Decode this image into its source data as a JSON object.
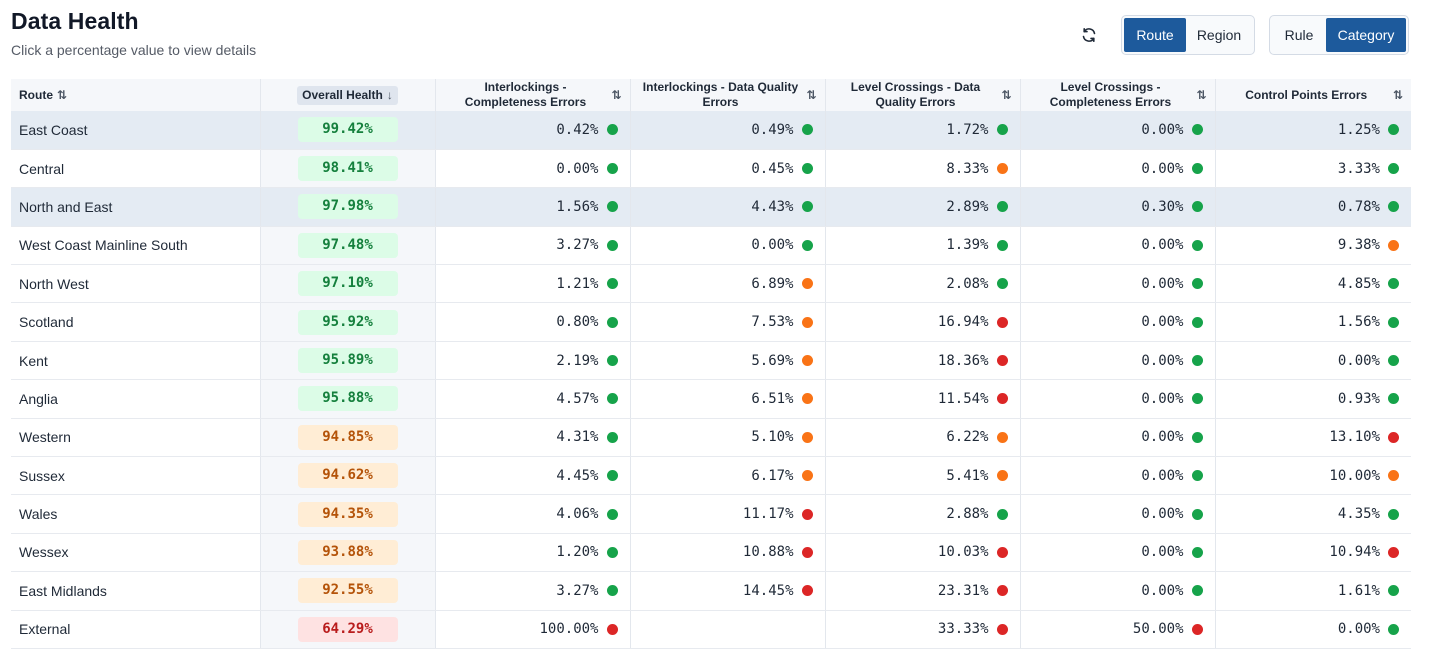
{
  "header": {
    "title": "Data Health",
    "subtitle": "Click a percentage value to view details"
  },
  "toolbar": {
    "refresh_icon": "refresh-icon",
    "group_by": [
      {
        "label": "Route",
        "active": true
      },
      {
        "label": "Region",
        "active": false
      }
    ],
    "view_by": [
      {
        "label": "Rule",
        "active": false
      },
      {
        "label": "Category",
        "active": true
      }
    ]
  },
  "colors": {
    "accent": "#1d5a9c",
    "green": "#16a34a",
    "orange": "#f97316",
    "red": "#dc2626"
  },
  "table": {
    "columns": [
      {
        "label": "Route",
        "sort_icon": "sort-both-icon"
      },
      {
        "label": "Overall Health",
        "sort_icon": "sort-down-icon"
      },
      {
        "label": "Interlockings - Completeness Errors",
        "sort_icon": "sort-both-icon"
      },
      {
        "label": "Interlockings - Data Quality Errors",
        "sort_icon": "sort-both-icon"
      },
      {
        "label": "Level Crossings - Data Quality Errors",
        "sort_icon": "sort-both-icon"
      },
      {
        "label": "Level Crossings - Completeness Errors",
        "sort_icon": "sort-both-icon"
      },
      {
        "label": "Control Points Errors",
        "sort_icon": "sort-both-icon"
      }
    ],
    "rows": [
      {
        "route": "East Coast",
        "health": "99.42%",
        "status": "good",
        "highlighted": true,
        "cells": [
          {
            "v": "0.42%",
            "s": "g"
          },
          {
            "v": "0.49%",
            "s": "g"
          },
          {
            "v": "1.72%",
            "s": "g"
          },
          {
            "v": "0.00%",
            "s": "g"
          },
          {
            "v": "1.25%",
            "s": "g"
          }
        ]
      },
      {
        "route": "Central",
        "health": "98.41%",
        "status": "good",
        "highlighted": false,
        "cells": [
          {
            "v": "0.00%",
            "s": "g"
          },
          {
            "v": "0.45%",
            "s": "g"
          },
          {
            "v": "8.33%",
            "s": "o"
          },
          {
            "v": "0.00%",
            "s": "g"
          },
          {
            "v": "3.33%",
            "s": "g"
          }
        ]
      },
      {
        "route": "North and East",
        "health": "97.98%",
        "status": "good",
        "highlighted": true,
        "cells": [
          {
            "v": "1.56%",
            "s": "g"
          },
          {
            "v": "4.43%",
            "s": "g"
          },
          {
            "v": "2.89%",
            "s": "g"
          },
          {
            "v": "0.30%",
            "s": "g"
          },
          {
            "v": "0.78%",
            "s": "g"
          }
        ]
      },
      {
        "route": "West Coast Mainline South",
        "health": "97.48%",
        "status": "good",
        "highlighted": false,
        "cells": [
          {
            "v": "3.27%",
            "s": "g"
          },
          {
            "v": "0.00%",
            "s": "g"
          },
          {
            "v": "1.39%",
            "s": "g"
          },
          {
            "v": "0.00%",
            "s": "g"
          },
          {
            "v": "9.38%",
            "s": "o"
          }
        ]
      },
      {
        "route": "North West",
        "health": "97.10%",
        "status": "good",
        "highlighted": false,
        "cells": [
          {
            "v": "1.21%",
            "s": "g"
          },
          {
            "v": "6.89%",
            "s": "o"
          },
          {
            "v": "2.08%",
            "s": "g"
          },
          {
            "v": "0.00%",
            "s": "g"
          },
          {
            "v": "4.85%",
            "s": "g"
          }
        ]
      },
      {
        "route": "Scotland",
        "health": "95.92%",
        "status": "good",
        "highlighted": false,
        "cells": [
          {
            "v": "0.80%",
            "s": "g"
          },
          {
            "v": "7.53%",
            "s": "o"
          },
          {
            "v": "16.94%",
            "s": "r"
          },
          {
            "v": "0.00%",
            "s": "g"
          },
          {
            "v": "1.56%",
            "s": "g"
          }
        ]
      },
      {
        "route": "Kent",
        "health": "95.89%",
        "status": "good",
        "highlighted": false,
        "cells": [
          {
            "v": "2.19%",
            "s": "g"
          },
          {
            "v": "5.69%",
            "s": "o"
          },
          {
            "v": "18.36%",
            "s": "r"
          },
          {
            "v": "0.00%",
            "s": "g"
          },
          {
            "v": "0.00%",
            "s": "g"
          }
        ]
      },
      {
        "route": "Anglia",
        "health": "95.88%",
        "status": "good",
        "highlighted": false,
        "cells": [
          {
            "v": "4.57%",
            "s": "g"
          },
          {
            "v": "6.51%",
            "s": "o"
          },
          {
            "v": "11.54%",
            "s": "r"
          },
          {
            "v": "0.00%",
            "s": "g"
          },
          {
            "v": "0.93%",
            "s": "g"
          }
        ]
      },
      {
        "route": "Western",
        "health": "94.85%",
        "status": "warn",
        "highlighted": false,
        "cells": [
          {
            "v": "4.31%",
            "s": "g"
          },
          {
            "v": "5.10%",
            "s": "o"
          },
          {
            "v": "6.22%",
            "s": "o"
          },
          {
            "v": "0.00%",
            "s": "g"
          },
          {
            "v": "13.10%",
            "s": "r"
          }
        ]
      },
      {
        "route": "Sussex",
        "health": "94.62%",
        "status": "warn",
        "highlighted": false,
        "cells": [
          {
            "v": "4.45%",
            "s": "g"
          },
          {
            "v": "6.17%",
            "s": "o"
          },
          {
            "v": "5.41%",
            "s": "o"
          },
          {
            "v": "0.00%",
            "s": "g"
          },
          {
            "v": "10.00%",
            "s": "o"
          }
        ]
      },
      {
        "route": "Wales",
        "health": "94.35%",
        "status": "warn",
        "highlighted": false,
        "cells": [
          {
            "v": "4.06%",
            "s": "g"
          },
          {
            "v": "11.17%",
            "s": "r"
          },
          {
            "v": "2.88%",
            "s": "g"
          },
          {
            "v": "0.00%",
            "s": "g"
          },
          {
            "v": "4.35%",
            "s": "g"
          }
        ]
      },
      {
        "route": "Wessex",
        "health": "93.88%",
        "status": "warn",
        "highlighted": false,
        "cells": [
          {
            "v": "1.20%",
            "s": "g"
          },
          {
            "v": "10.88%",
            "s": "r"
          },
          {
            "v": "10.03%",
            "s": "r"
          },
          {
            "v": "0.00%",
            "s": "g"
          },
          {
            "v": "10.94%",
            "s": "r"
          }
        ]
      },
      {
        "route": "East Midlands",
        "health": "92.55%",
        "status": "warn",
        "highlighted": false,
        "cells": [
          {
            "v": "3.27%",
            "s": "g"
          },
          {
            "v": "14.45%",
            "s": "r"
          },
          {
            "v": "23.31%",
            "s": "r"
          },
          {
            "v": "0.00%",
            "s": "g"
          },
          {
            "v": "1.61%",
            "s": "g"
          }
        ]
      },
      {
        "route": "External",
        "health": "64.29%",
        "status": "bad",
        "highlighted": false,
        "cells": [
          {
            "v": "100.00%",
            "s": "r"
          },
          {
            "v": "",
            "s": ""
          },
          {
            "v": "33.33%",
            "s": "r"
          },
          {
            "v": "50.00%",
            "s": "r"
          },
          {
            "v": "0.00%",
            "s": "g"
          }
        ]
      }
    ]
  }
}
